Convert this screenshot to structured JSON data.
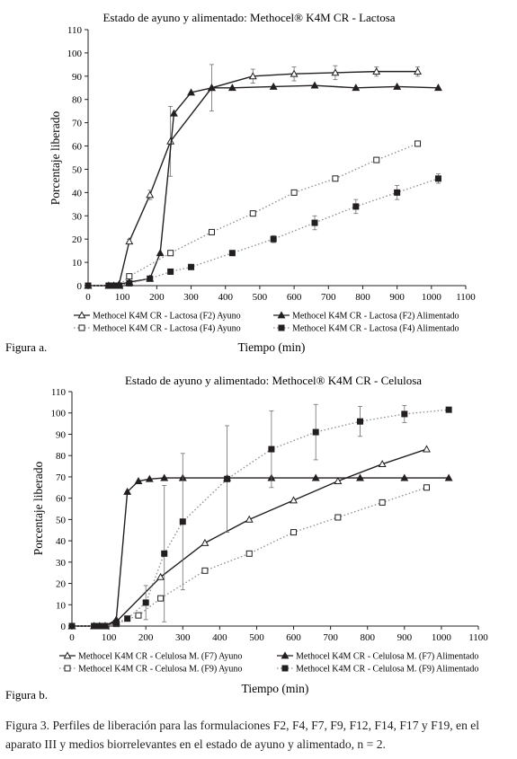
{
  "figure_labels": [
    "Figura a.",
    "Figura b."
  ],
  "caption": "Figura 3. Perfiles de liberación para las formulaciones F2, F4, F7, F9, F12, F14, F17 y F19, en el aparato III y medios biorrelevantes en el estado de ayuno y alimentado, n = 2.",
  "chart_data": [
    {
      "type": "line",
      "title": "Estado de ayuno y alimentado: Methocel® K4M CR - Lactosa",
      "xlabel": "Tiempo (min)",
      "ylabel": "Porcentaje liberado",
      "xlim": [
        0,
        1100
      ],
      "ylim": [
        0,
        110
      ],
      "xticks": [
        0,
        100,
        200,
        300,
        400,
        500,
        600,
        700,
        800,
        900,
        1000,
        1100
      ],
      "yticks": [
        0,
        10,
        20,
        30,
        40,
        50,
        60,
        70,
        80,
        90,
        100,
        110
      ],
      "grid": false,
      "legend_position": "bottom",
      "series": [
        {
          "name": "Methocel K4M CR - Lactosa (F2) Ayuno",
          "marker": "open-triangle",
          "line": "solid",
          "x": [
            0,
            60,
            75,
            90,
            120,
            180,
            240,
            360,
            480,
            600,
            720,
            840,
            960
          ],
          "y": [
            0,
            0,
            0,
            0.5,
            19,
            39,
            62,
            85,
            90,
            91,
            91.5,
            92,
            92
          ],
          "err": [
            0,
            0,
            0,
            0,
            1,
            2,
            15,
            10,
            3,
            3,
            3,
            2,
            2
          ]
        },
        {
          "name": "Methocel K4M CR - Lactosa (F2) Alimentado",
          "marker": "filled-triangle",
          "line": "solid",
          "x": [
            0,
            60,
            75,
            90,
            120,
            180,
            210,
            250,
            300,
            360,
            420,
            540,
            660,
            780,
            900,
            1020
          ],
          "y": [
            0,
            0,
            0,
            0.5,
            1.5,
            3,
            14,
            74,
            83,
            85,
            85,
            85.5,
            86,
            85,
            85.5,
            85
          ],
          "err": [
            0,
            0,
            0,
            0,
            0,
            0,
            0,
            0,
            0,
            0,
            0,
            0,
            0,
            0,
            0,
            0
          ]
        },
        {
          "name": "Methocel K4M CR - Lactosa (F4) Ayuno",
          "marker": "open-square",
          "line": "dotted",
          "x": [
            0,
            60,
            75,
            90,
            120,
            240,
            360,
            480,
            600,
            720,
            840,
            960
          ],
          "y": [
            0,
            0,
            0,
            0,
            4,
            14,
            23,
            31,
            40,
            46,
            54,
            61
          ],
          "err": [
            0,
            0,
            0,
            0,
            0,
            0,
            0,
            0,
            0,
            0,
            0,
            0
          ]
        },
        {
          "name": "Methocel K4M CR - Lactosa (F4) Alimentado",
          "marker": "filled-square",
          "line": "dotted",
          "x": [
            0,
            60,
            75,
            90,
            120,
            180,
            240,
            300,
            420,
            540,
            660,
            780,
            900,
            1020
          ],
          "y": [
            0,
            0,
            0,
            0,
            1,
            3,
            6,
            8,
            14,
            20,
            27,
            34,
            40,
            46
          ],
          "err": [
            0,
            0,
            0,
            0,
            0,
            0,
            0,
            0,
            1,
            1.5,
            3,
            3,
            3,
            2
          ]
        }
      ]
    },
    {
      "type": "line",
      "title": "Estado de ayuno y alimentado: Methocel® K4M CR - Celulosa",
      "xlabel": "Tiempo (min)",
      "ylabel": "Porcentaje liberado",
      "xlim": [
        0,
        1100
      ],
      "ylim": [
        0,
        110
      ],
      "xticks": [
        0,
        100,
        200,
        300,
        400,
        500,
        600,
        700,
        800,
        900,
        1000,
        1100
      ],
      "yticks": [
        0,
        10,
        20,
        30,
        40,
        50,
        60,
        70,
        80,
        90,
        100,
        110
      ],
      "grid": false,
      "legend_position": "bottom",
      "series": [
        {
          "name": "Methocel K4M CR - Celulosa M. (F7) Ayuno",
          "marker": "open-triangle",
          "line": "solid",
          "x": [
            0,
            60,
            75,
            90,
            120,
            240,
            360,
            480,
            600,
            720,
            840,
            960
          ],
          "y": [
            0,
            0,
            0,
            0,
            2,
            23,
            39,
            50,
            59,
            68,
            76,
            83
          ],
          "err": [
            0,
            0,
            0,
            0,
            0,
            0,
            0,
            0,
            0,
            0,
            0,
            0
          ]
        },
        {
          "name": "Methocel K4M CR - Celulosa M. (F7) Alimentado",
          "marker": "filled-triangle",
          "line": "solid",
          "x": [
            0,
            60,
            75,
            90,
            120,
            150,
            180,
            210,
            250,
            300,
            420,
            540,
            660,
            780,
            900,
            1020
          ],
          "y": [
            0,
            0,
            0,
            0,
            3,
            63,
            68,
            69,
            69.5,
            69.5,
            69.5,
            69.5,
            69.5,
            69.5,
            69.5,
            69.5
          ],
          "err": [
            0,
            0,
            0,
            0,
            0,
            0,
            0,
            0,
            0,
            0,
            0,
            0,
            0,
            0,
            0,
            0
          ]
        },
        {
          "name": "Methocel K4M CR - Celulosa M. (F9) Ayuno",
          "marker": "open-square",
          "line": "dotted",
          "x": [
            0,
            60,
            75,
            90,
            120,
            180,
            240,
            360,
            480,
            600,
            720,
            840,
            960
          ],
          "y": [
            0,
            0,
            0,
            0,
            1,
            5,
            13,
            26,
            34,
            44,
            51,
            58,
            65
          ],
          "err": [
            0,
            0,
            0,
            0,
            0,
            0,
            0,
            0,
            0,
            0,
            0,
            0,
            0
          ]
        },
        {
          "name": "Methocel K4M CR - Celulosa M. (F9) Alimentado",
          "marker": "filled-square",
          "line": "dotted",
          "x": [
            0,
            60,
            75,
            90,
            120,
            150,
            200,
            250,
            300,
            420,
            540,
            660,
            780,
            900,
            1020
          ],
          "y": [
            0,
            0,
            0,
            0,
            1.5,
            3.5,
            11,
            34,
            49,
            69,
            83,
            91,
            96,
            99.5,
            101.5
          ],
          "err": [
            0,
            0,
            0,
            0,
            0,
            0,
            8,
            32,
            32,
            25,
            18,
            13,
            7,
            4,
            0
          ]
        }
      ]
    }
  ]
}
